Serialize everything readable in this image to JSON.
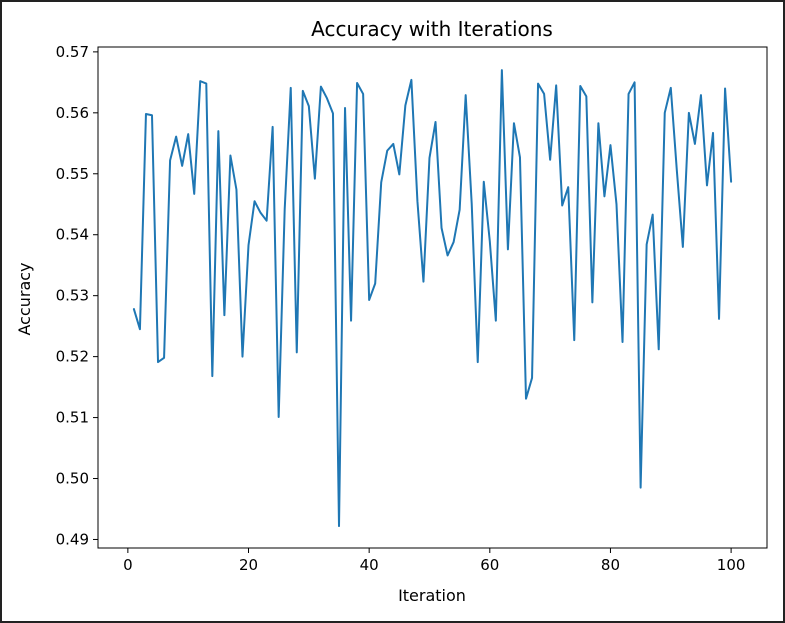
{
  "chart_data": {
    "type": "line",
    "title": "Accuracy with Iterations",
    "xlabel": "Iteration",
    "ylabel": "Accuracy",
    "xlim": [
      -4.95,
      105.95
    ],
    "ylim": [
      0.4886,
      0.5708
    ],
    "grid": false,
    "xticks": [
      0,
      20,
      40,
      60,
      80,
      100
    ],
    "xtick_labels": [
      "0",
      "20",
      "40",
      "60",
      "80",
      "100"
    ],
    "yticks": [
      0.49,
      0.5,
      0.51,
      0.52,
      0.53,
      0.54,
      0.55,
      0.56,
      0.57
    ],
    "ytick_labels": [
      "0.49",
      "0.50",
      "0.51",
      "0.52",
      "0.53",
      "0.54",
      "0.55",
      "0.56",
      "0.57"
    ],
    "series": [
      {
        "color": "#1f77b4",
        "x": [
          1,
          2,
          3,
          4,
          5,
          6,
          7,
          8,
          9,
          10,
          11,
          12,
          13,
          14,
          15,
          16,
          17,
          18,
          19,
          20,
          21,
          22,
          23,
          24,
          25,
          26,
          27,
          28,
          29,
          30,
          31,
          32,
          33,
          34,
          35,
          36,
          37,
          38,
          39,
          40,
          41,
          42,
          43,
          44,
          45,
          46,
          47,
          48,
          49,
          50,
          51,
          52,
          53,
          54,
          55,
          56,
          57,
          58,
          59,
          60,
          61,
          62,
          63,
          64,
          65,
          66,
          67,
          68,
          69,
          70,
          71,
          72,
          73,
          74,
          75,
          76,
          77,
          78,
          79,
          80,
          81,
          82,
          83,
          84,
          85,
          86,
          87,
          88,
          89,
          90,
          91,
          92,
          93,
          94,
          95,
          96,
          97,
          98,
          99,
          100
        ],
        "y": [
          0.5278,
          0.5245,
          0.5598,
          0.5596,
          0.5191,
          0.5198,
          0.5522,
          0.5561,
          0.5513,
          0.5565,
          0.5467,
          0.5652,
          0.5648,
          0.5168,
          0.557,
          0.5268,
          0.553,
          0.5474,
          0.52,
          0.5383,
          0.5455,
          0.5436,
          0.5423,
          0.5577,
          0.5101,
          0.5442,
          0.5641,
          0.5207,
          0.5636,
          0.5611,
          0.5492,
          0.5643,
          0.5624,
          0.5599,
          0.4922,
          0.5608,
          0.5259,
          0.5649,
          0.5631,
          0.5293,
          0.532,
          0.5486,
          0.5538,
          0.5549,
          0.5499,
          0.5612,
          0.5654,
          0.5455,
          0.5323,
          0.5526,
          0.5585,
          0.5411,
          0.5366,
          0.5388,
          0.5441,
          0.5629,
          0.5451,
          0.5191,
          0.5487,
          0.5389,
          0.5259,
          0.567,
          0.5376,
          0.5583,
          0.5527,
          0.5131,
          0.5165,
          0.5648,
          0.5631,
          0.5523,
          0.5645,
          0.5448,
          0.5478,
          0.5227,
          0.5644,
          0.5627,
          0.5289,
          0.5583,
          0.5463,
          0.5547,
          0.545,
          0.5224,
          0.5631,
          0.565,
          0.4985,
          0.5384,
          0.5433,
          0.5212,
          0.56,
          0.5641,
          0.5506,
          0.538,
          0.56,
          0.5549,
          0.5629,
          0.5481,
          0.5567,
          0.5262,
          0.564,
          0.5487
        ]
      }
    ]
  }
}
